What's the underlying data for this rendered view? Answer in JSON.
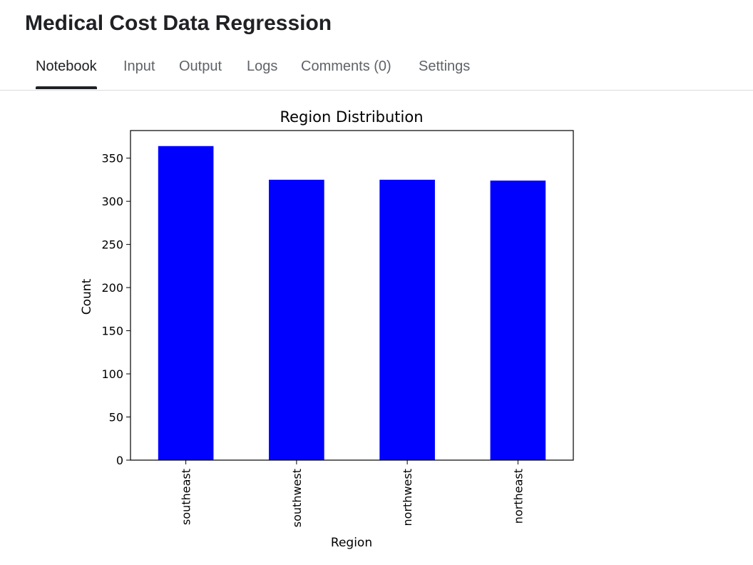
{
  "notebook": {
    "title": "Medical Cost Data Regression"
  },
  "tabs": [
    {
      "label": "Notebook",
      "active": true
    },
    {
      "label": "Input",
      "active": false
    },
    {
      "label": "Output",
      "active": false
    },
    {
      "label": "Logs",
      "active": false
    },
    {
      "label": "Comments (0)",
      "active": false
    },
    {
      "label": "Settings",
      "active": false
    }
  ],
  "chart_data": {
    "type": "bar",
    "title": "Region Distribution",
    "xlabel": "Region",
    "ylabel": "Count",
    "categories": [
      "southeast",
      "southwest",
      "northwest",
      "northeast"
    ],
    "values": [
      364,
      325,
      325,
      324
    ],
    "ylim": [
      0,
      382
    ],
    "yticks": [
      0,
      50,
      100,
      150,
      200,
      250,
      300,
      350
    ],
    "bar_color": "#0000ff",
    "grid": false
  }
}
